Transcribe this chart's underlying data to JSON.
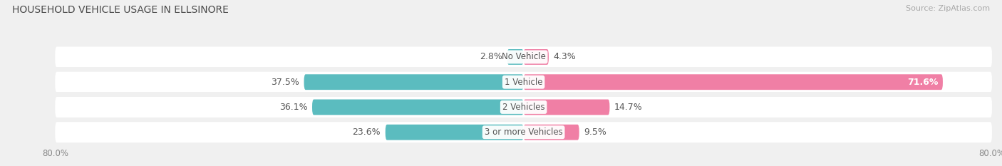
{
  "title": "HOUSEHOLD VEHICLE USAGE IN ELLSINORE",
  "source": "Source: ZipAtlas.com",
  "categories": [
    "No Vehicle",
    "1 Vehicle",
    "2 Vehicles",
    "3 or more Vehicles"
  ],
  "owner_values": [
    2.8,
    37.5,
    36.1,
    23.6
  ],
  "renter_values": [
    4.3,
    71.6,
    14.7,
    9.5
  ],
  "owner_color": "#5bbcbf",
  "renter_color": "#f07fa5",
  "xlim_owner": 80.0,
  "xlim_renter": 80.0,
  "background_color": "#f0f0f0",
  "row_bg_color": "#ffffff",
  "title_fontsize": 10,
  "source_fontsize": 8,
  "value_fontsize": 9,
  "cat_fontsize": 8.5,
  "axis_fontsize": 8.5,
  "renter_label_71_color": "#ffffff"
}
